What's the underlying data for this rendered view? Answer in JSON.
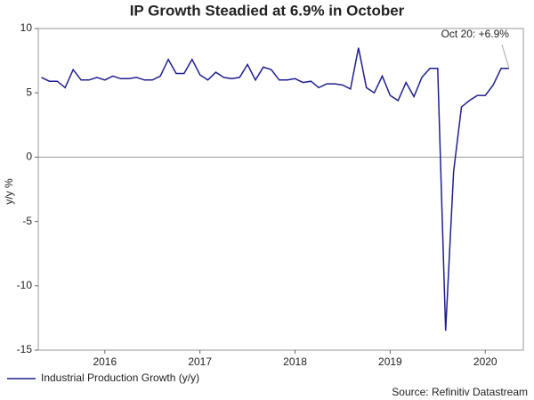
{
  "chart_data": {
    "type": "line",
    "title": "IP Growth Steadied at 6.9% in October",
    "y_label": "y/y %",
    "annotation": "Oct 20: +6.9%",
    "source": "Source: Refinitiv Datastream",
    "x": [
      2015.833,
      2015.917,
      2016.0,
      2016.083,
      2016.167,
      2016.25,
      2016.333,
      2016.417,
      2016.5,
      2016.583,
      2016.667,
      2016.75,
      2016.833,
      2016.917,
      2017.0,
      2017.083,
      2017.167,
      2017.25,
      2017.333,
      2017.417,
      2017.5,
      2017.583,
      2017.667,
      2017.75,
      2017.833,
      2017.917,
      2018.0,
      2018.083,
      2018.167,
      2018.25,
      2018.333,
      2018.417,
      2018.5,
      2018.583,
      2018.667,
      2018.75,
      2018.833,
      2018.917,
      2019.0,
      2019.083,
      2019.167,
      2019.25,
      2019.333,
      2019.417,
      2019.5,
      2019.583,
      2019.667,
      2019.75,
      2019.833,
      2019.917,
      2020.0,
      2020.083,
      2020.167,
      2020.25,
      2020.333,
      2020.417,
      2020.5,
      2020.583,
      2020.667,
      2020.75
    ],
    "series": [
      {
        "name": "Industrial Production Growth (y/y)",
        "color": "#1f1f8f",
        "values": [
          6.2,
          5.9,
          5.9,
          5.4,
          6.8,
          6.0,
          6.0,
          6.2,
          6.0,
          6.3,
          6.1,
          6.1,
          6.2,
          6.0,
          6.0,
          6.3,
          7.6,
          6.5,
          6.5,
          7.6,
          6.4,
          6.0,
          6.6,
          6.2,
          6.1,
          6.2,
          7.2,
          6.0,
          7.0,
          6.8,
          6.0,
          6.0,
          6.1,
          5.8,
          5.9,
          5.4,
          5.7,
          5.7,
          5.6,
          5.3,
          8.5,
          5.4,
          5.0,
          6.3,
          4.8,
          4.4,
          5.8,
          4.7,
          6.2,
          6.9,
          6.9,
          -13.5,
          -1.1,
          3.9,
          4.4,
          4.8,
          4.8,
          5.6,
          6.9,
          6.9
        ]
      }
    ],
    "xlim": [
      2015.8,
      2020.9
    ],
    "xticks": [
      {
        "value": 2016.5,
        "label": "2016"
      },
      {
        "value": 2017.5,
        "label": "2017"
      },
      {
        "value": 2018.5,
        "label": "2018"
      },
      {
        "value": 2019.5,
        "label": "2019"
      },
      {
        "value": 2020.5,
        "label": "2020"
      }
    ],
    "ylim": [
      -15,
      10
    ],
    "yticks": [
      -15,
      -10,
      -5,
      0,
      5,
      10
    ],
    "legend": "bottom-left"
  }
}
